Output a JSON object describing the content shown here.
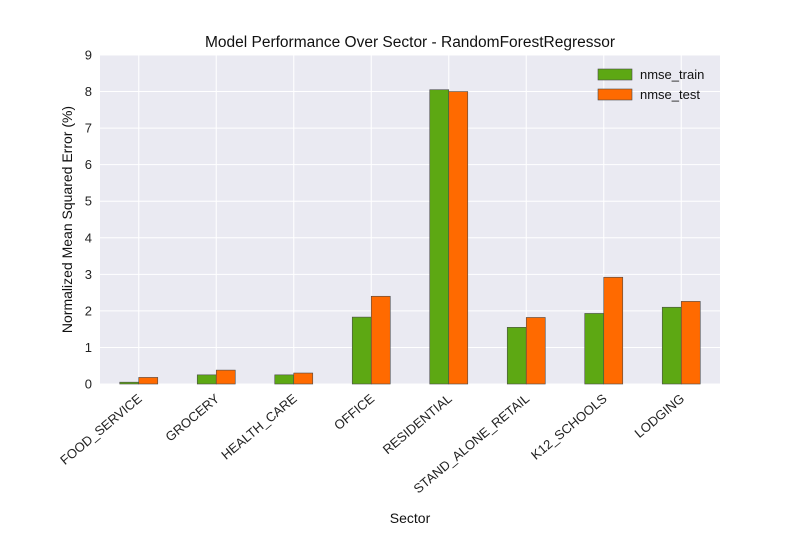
{
  "chart_data": {
    "type": "bar",
    "title": "Model Performance Over Sector - RandomForestRegressor",
    "xlabel": "Sector",
    "ylabel": "Normalized Mean Squared Error (%)",
    "ylim": [
      0,
      9
    ],
    "yticks": [
      "0",
      "1",
      "2",
      "3",
      "4",
      "5",
      "6",
      "7",
      "8",
      "9"
    ],
    "categories": [
      "FOOD_SERVICE",
      "GROCERY",
      "HEALTH_CARE",
      "OFFICE",
      "RESIDENTIAL",
      "STAND_ALONE_RETAIL",
      "K12_SCHOOLS",
      "LODGING"
    ],
    "series": [
      {
        "name": "nmse_train",
        "color": "#5da813",
        "values": [
          0.05,
          0.25,
          0.25,
          1.83,
          8.05,
          1.55,
          1.93,
          2.1
        ]
      },
      {
        "name": "nmse_test",
        "color": "#ff6a00",
        "values": [
          0.18,
          0.38,
          0.3,
          2.4,
          8.0,
          1.82,
          2.92,
          2.26
        ]
      }
    ],
    "grid": true,
    "legend_position": "top-right"
  }
}
